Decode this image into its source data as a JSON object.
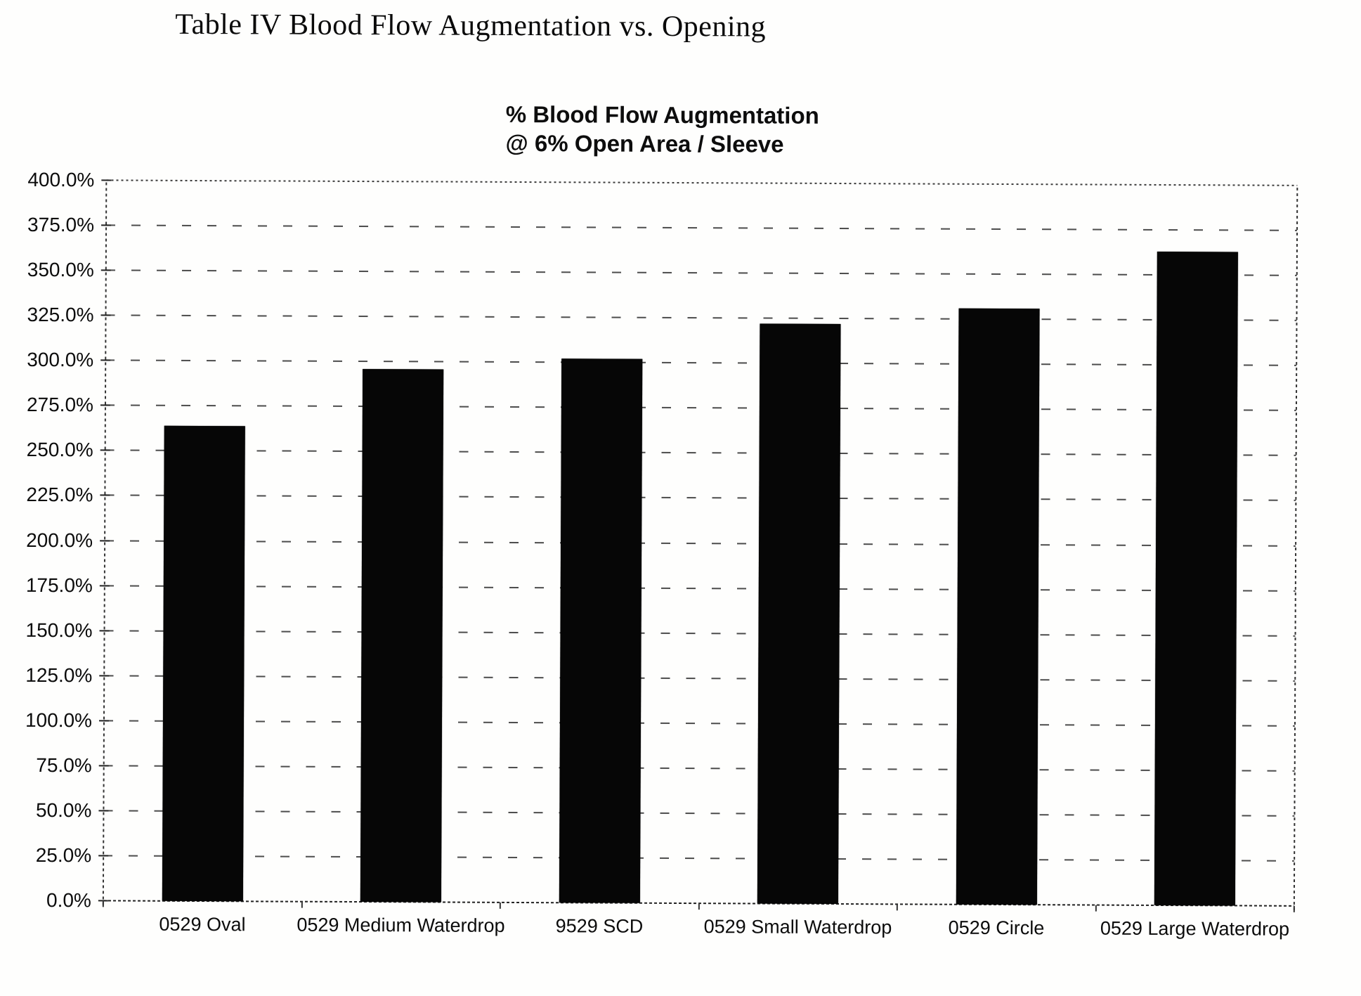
{
  "document": {
    "title": "Table IV Blood Flow Augmentation vs. Opening"
  },
  "chart_data": {
    "type": "bar",
    "title": "% Blood Flow Augmentation",
    "subtitle": "@ 6% Open Area / Sleeve",
    "categories": [
      "0529 Oval",
      "0529 Medium Waterdrop",
      "9529 SCD",
      "0529 Small Waterdrop",
      "0529 Circle",
      "0529 Large Waterdrop"
    ],
    "values": [
      264,
      296,
      302,
      322,
      331,
      363
    ],
    "unit": "%",
    "ylim": [
      0,
      400
    ],
    "ytick_step": 25,
    "ytick_values": [
      400,
      375,
      350,
      325,
      300,
      275,
      250,
      225,
      200,
      175,
      150,
      125,
      100,
      75,
      50,
      25,
      0
    ],
    "ytick_labels": [
      "400.0%",
      "375.0%",
      "350.0%",
      "325.0%",
      "300.0%",
      "275.0%",
      "250.0%",
      "225.0%",
      "200.0%",
      "175.0%",
      "150.0%",
      "125.0%",
      "100.0%",
      "75.0%",
      "50.0%",
      "25.0%",
      "0.0%"
    ],
    "bar_color": "#060606",
    "grid": "horizontal-dashed",
    "legend_position": "none",
    "xlabel": "",
    "ylabel": ""
  }
}
